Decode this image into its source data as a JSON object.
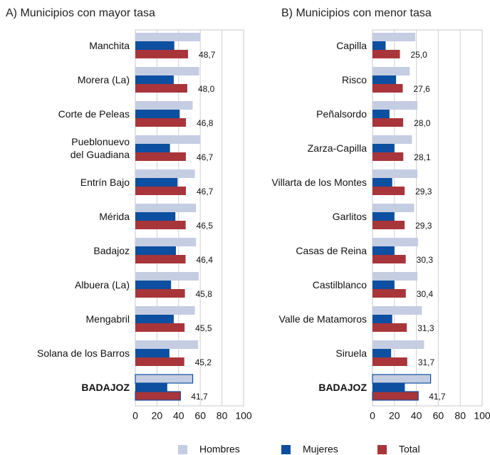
{
  "chart_data": [
    {
      "type": "bar",
      "orientation": "horizontal",
      "title": "A) Municipios con mayor tasa",
      "categories": [
        "Manchita",
        "Morera (La)",
        "Corte de Peleas",
        "Pueblonuevo\ndel Guadiana",
        "Entrín Bajo",
        "Mérida",
        "Badajoz",
        "Albuera (La)",
        "Mengabril",
        "Solana de los Barros",
        "BADAJOZ"
      ],
      "series": [
        {
          "name": "Hombres",
          "color": "#c5cde3",
          "values": [
            60,
            59,
            53,
            60,
            55,
            56,
            56,
            58.5,
            55,
            58,
            53
          ]
        },
        {
          "name": "Mujeres",
          "color": "#0d4fa0",
          "values": [
            36,
            35.5,
            41,
            32,
            39,
            37,
            37.5,
            33,
            35.5,
            31.5,
            29.5
          ]
        },
        {
          "name": "Total",
          "color": "#a8353a",
          "values": [
            48.7,
            48.0,
            46.8,
            46.7,
            46.7,
            46.5,
            46.4,
            45.8,
            45.5,
            45.2,
            41.7
          ],
          "value_labels": [
            "48,7",
            "48,0",
            "46,8",
            "46,7",
            "46,7",
            "46,5",
            "46,4",
            "45,8",
            "45,5",
            "45,2",
            "41,7"
          ]
        }
      ],
      "xlim": [
        0,
        100
      ],
      "xticks": [
        0,
        20,
        40,
        60,
        80,
        100
      ],
      "grid": true
    },
    {
      "type": "bar",
      "orientation": "horizontal",
      "title": "B) Municipios con menor tasa",
      "categories": [
        "Capilla",
        "Risco",
        "Peñalsordo",
        "Zarza-Capilla",
        "Villarta de los Montes",
        "Garlitos",
        "Casas de Reina",
        "Castilblanco",
        "Valle de Matamoros",
        "Siruela",
        "BADAJOZ"
      ],
      "series": [
        {
          "name": "Hombres",
          "color": "#c5cde3",
          "values": [
            39,
            34,
            41,
            36,
            41,
            38,
            41.5,
            41,
            45,
            47,
            53
          ]
        },
        {
          "name": "Mujeres",
          "color": "#0d4fa0",
          "values": [
            12,
            21.5,
            15.5,
            20,
            18,
            20,
            20,
            20,
            18,
            17,
            29.5
          ]
        },
        {
          "name": "Total",
          "color": "#a8353a",
          "values": [
            25.0,
            27.6,
            28.0,
            28.1,
            29.3,
            29.3,
            30.3,
            30.4,
            31.3,
            31.7,
            41.7
          ],
          "value_labels": [
            "25,0",
            "27,6",
            "28,0",
            "28,1",
            "29,3",
            "29,3",
            "30,3",
            "30,4",
            "31,3",
            "31,7",
            "41,7"
          ]
        }
      ],
      "xlim": [
        0,
        100
      ],
      "xticks": [
        0,
        20,
        40,
        60,
        80,
        100
      ],
      "grid": true
    }
  ]
}
